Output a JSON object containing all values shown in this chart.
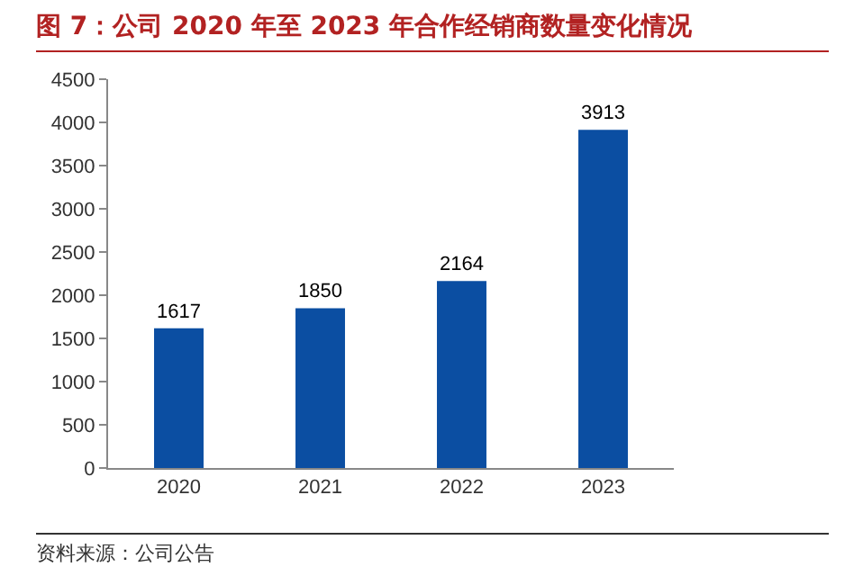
{
  "chart_data": {
    "type": "bar",
    "title": "图 7：公司 2020 年至 2023 年合作经销商数量变化情况",
    "categories": [
      "2020",
      "2021",
      "2022",
      "2023"
    ],
    "values": [
      1617,
      1850,
      2164,
      3913
    ],
    "color": "#0b4ea2",
    "ylim": [
      0,
      4500
    ],
    "yticks": [
      0,
      500,
      1000,
      1500,
      2000,
      2500,
      3000,
      3500,
      4000,
      4500
    ],
    "grid": false,
    "data_labels": true,
    "annotations": [
      "资料来源：公司公告"
    ]
  }
}
